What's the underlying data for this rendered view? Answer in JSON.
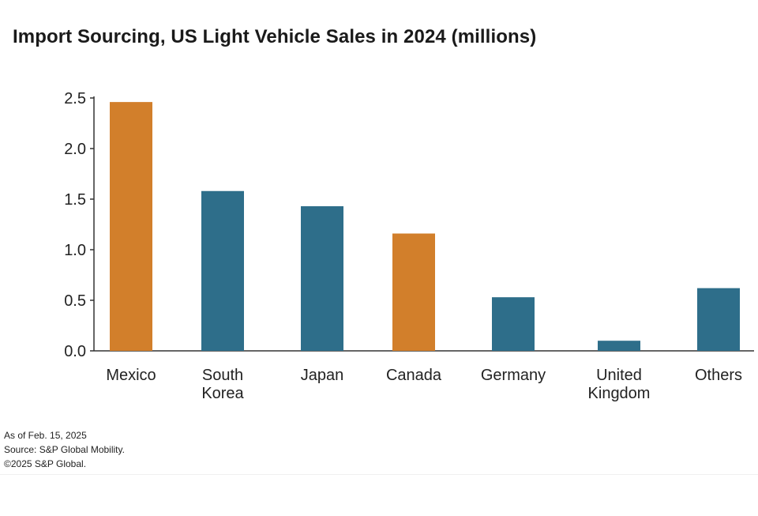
{
  "chart_data": {
    "type": "bar",
    "title": "Import Sourcing, US Light Vehicle Sales in 2024 (millions)",
    "categories": [
      [
        "Mexico"
      ],
      [
        "South",
        "Korea"
      ],
      [
        "Japan"
      ],
      [
        "Canada"
      ],
      [
        "Germany"
      ],
      [
        "United",
        "Kingdom"
      ],
      [
        "Others"
      ]
    ],
    "values": [
      2.46,
      1.58,
      1.43,
      1.16,
      0.53,
      0.1,
      0.62
    ],
    "bar_colors": [
      "#d27f2b",
      "#2e6e8a",
      "#2e6e8a",
      "#d27f2b",
      "#2e6e8a",
      "#2e6e8a",
      "#2e6e8a"
    ],
    "ylim": [
      0,
      2.5
    ],
    "yticks": [
      "0.0",
      "0.5",
      "1.0",
      "1.5",
      "2.0",
      "2.5"
    ],
    "xlabel": "",
    "ylabel": "",
    "grid": false
  },
  "footnotes": {
    "as_of": "As of Feb. 15, 2025",
    "source": "Source: S&P Global Mobility.",
    "copyright": "©2025 S&P Global."
  }
}
